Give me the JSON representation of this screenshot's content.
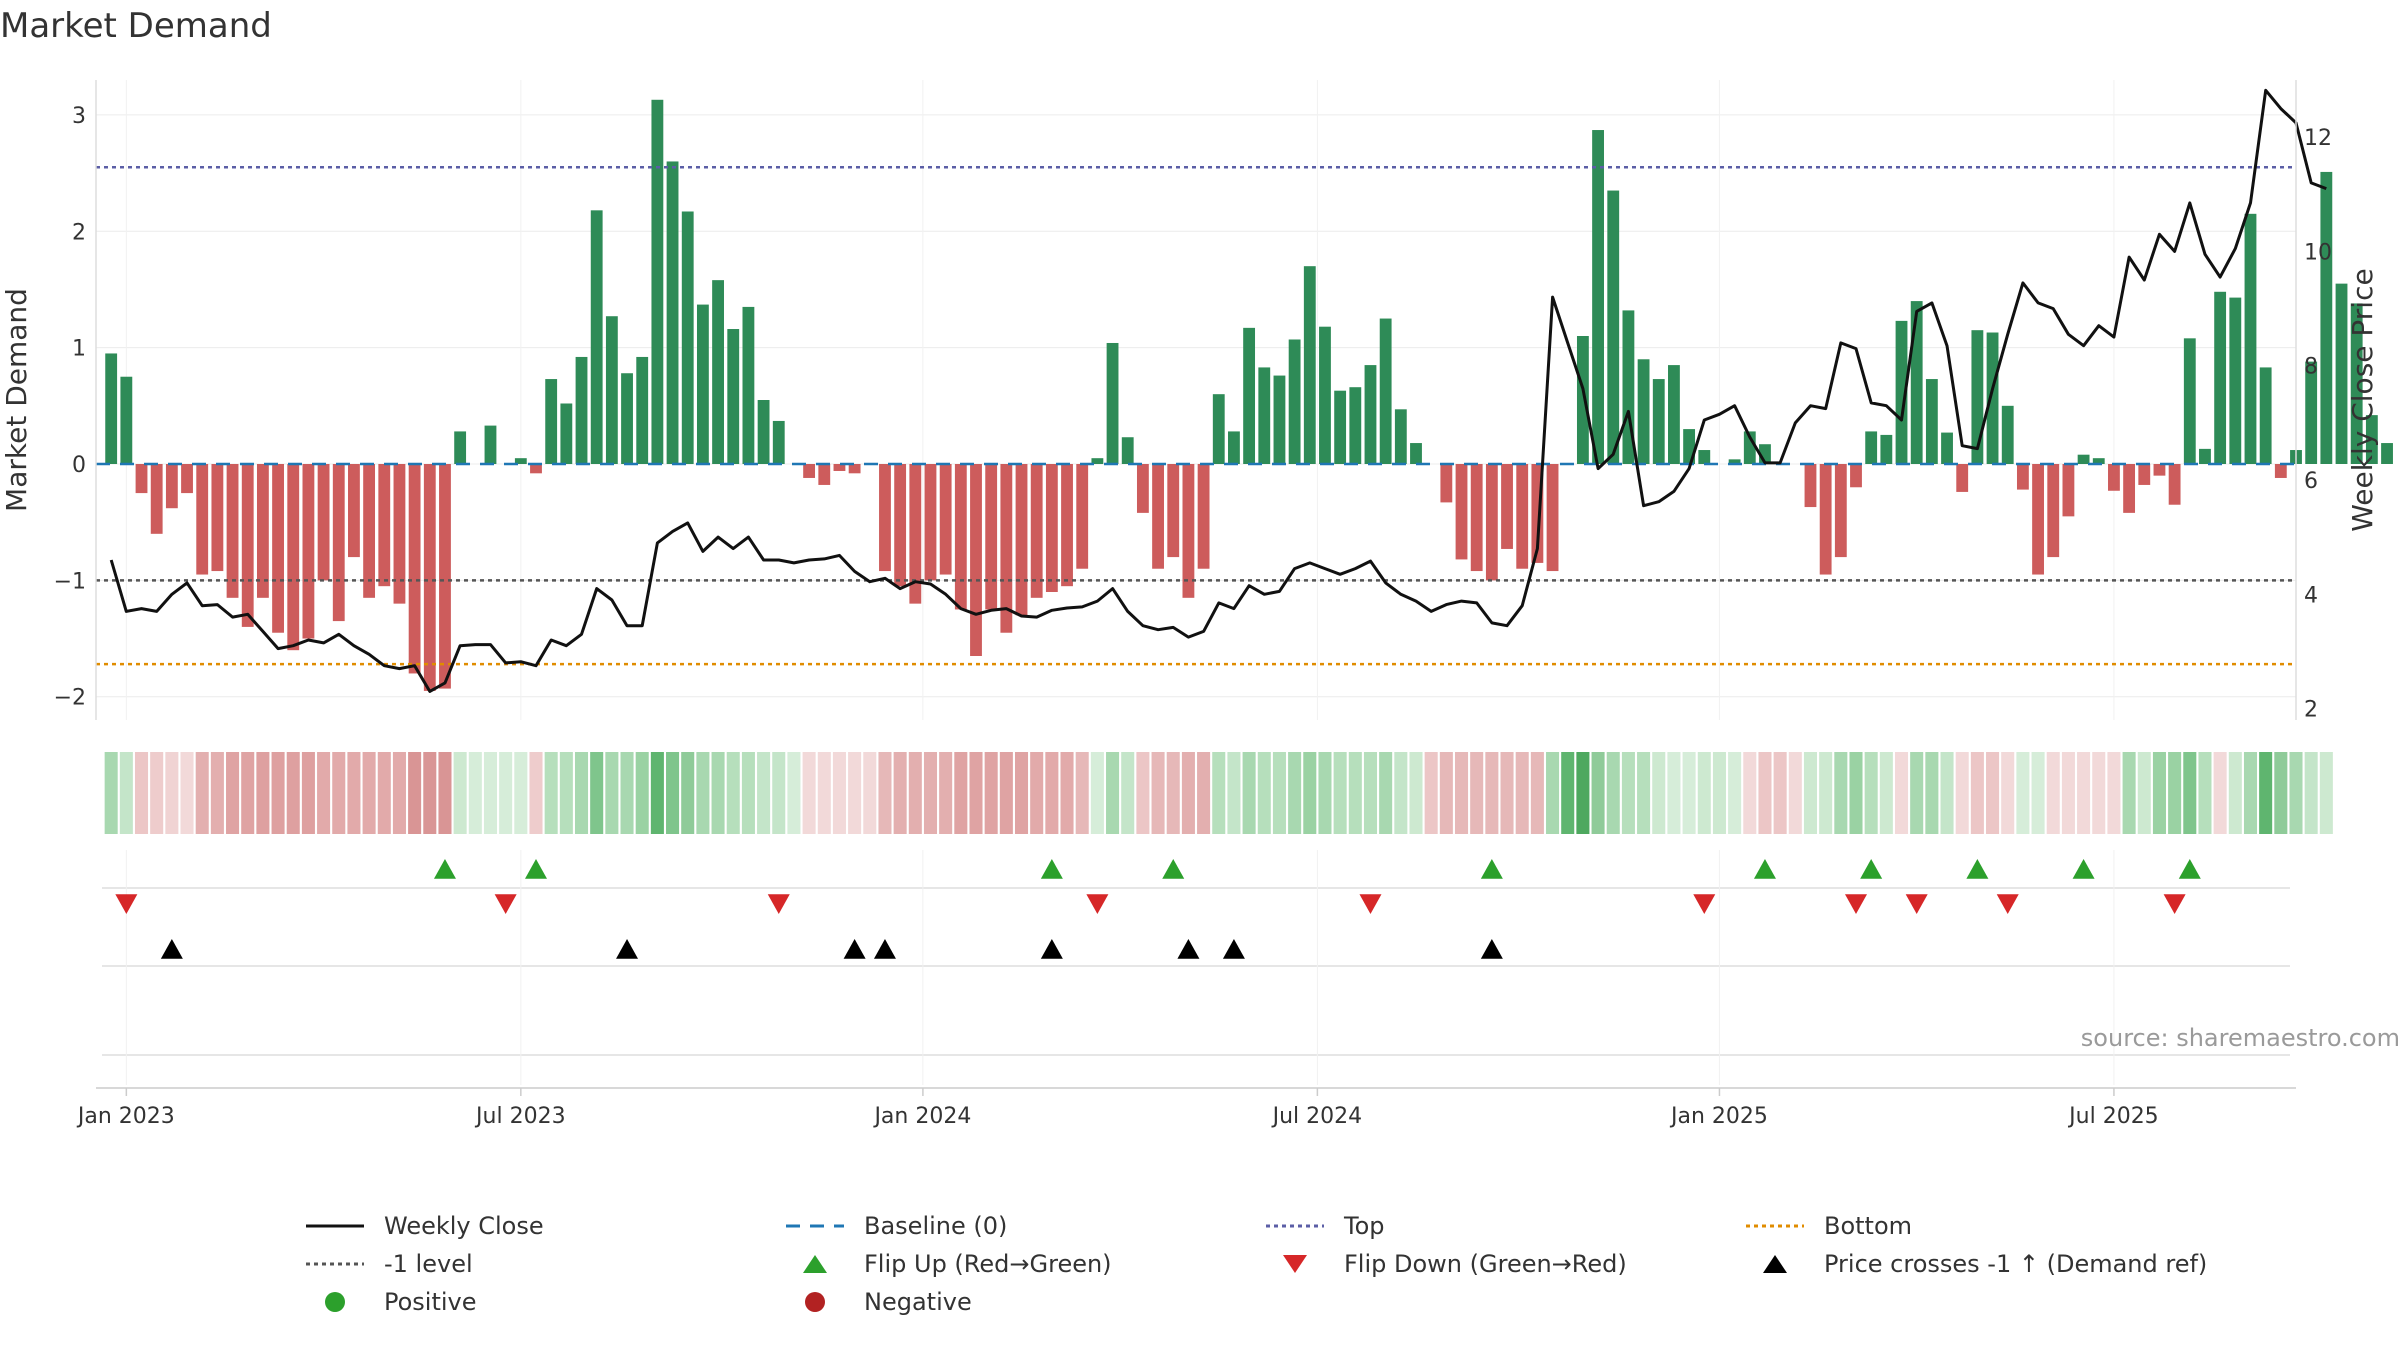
{
  "chart_data": {
    "type": "bar",
    "title": "Market Demand",
    "ylabel": "Market Demand",
    "ylabel_right": "Weekly Close Price",
    "ylim": [
      -2.2,
      3.3
    ],
    "ylim_right": [
      1.8,
      13.0
    ],
    "yticks": [
      3,
      2,
      1,
      0,
      -1,
      -2
    ],
    "yticks_labels": [
      "3",
      "2",
      "1",
      "0",
      "−1",
      "−2"
    ],
    "yticks_right": [
      12,
      10,
      8,
      6,
      4,
      2
    ],
    "x_range": [
      -1,
      144
    ],
    "xticks": [
      {
        "week": 1,
        "label": "Jan 2023"
      },
      {
        "week": 27,
        "label": "Jul 2023"
      },
      {
        "week": 53.5,
        "label": "Jan 2024"
      },
      {
        "week": 79.5,
        "label": "Jul 2024"
      },
      {
        "week": 106,
        "label": "Jan 2025"
      },
      {
        "week": 132,
        "label": "Jul 2025"
      }
    ],
    "reference_lines": {
      "top": 2.55,
      "minus_one": -1.0,
      "bottom": -1.72,
      "baseline": 0
    },
    "demand": [
      0.95,
      0.75,
      -0.25,
      -0.6,
      -0.38,
      -0.25,
      -0.95,
      -0.92,
      -1.15,
      -1.4,
      -1.15,
      -1.45,
      -1.6,
      -1.5,
      -1.0,
      -1.35,
      -0.8,
      -1.15,
      -1.05,
      -1.2,
      -1.8,
      -1.95,
      -1.93,
      0.28,
      0.0,
      0.33,
      0.0,
      0.05,
      -0.08,
      0.73,
      0.52,
      0.92,
      2.18,
      1.27,
      0.78,
      0.92,
      3.13,
      2.6,
      2.17,
      1.37,
      1.58,
      1.16,
      1.35,
      0.55,
      0.37,
      0.0,
      -0.12,
      -0.18,
      -0.06,
      -0.08,
      0.0,
      -0.92,
      -1.05,
      -1.2,
      -1.0,
      -0.95,
      -1.25,
      -1.65,
      -1.25,
      -1.45,
      -1.3,
      -1.15,
      -1.1,
      -1.05,
      -0.9,
      0.05,
      1.04,
      0.23,
      -0.42,
      -0.9,
      -0.8,
      -1.15,
      -0.9,
      0.6,
      0.28,
      1.17,
      0.83,
      0.76,
      1.07,
      1.7,
      1.18,
      0.63,
      0.66,
      0.85,
      1.25,
      0.47,
      0.18,
      0.0,
      -0.33,
      -0.82,
      -0.92,
      -1.0,
      -0.73,
      -0.9,
      -0.85,
      -0.92,
      0.0,
      1.1,
      2.87,
      2.35,
      1.32,
      0.9,
      0.73,
      0.85,
      0.3,
      0.12,
      0.0,
      0.04,
      0.28,
      0.17,
      0.0,
      0.0,
      -0.37,
      -0.95,
      -0.8,
      -0.2,
      0.28,
      0.25,
      1.23,
      1.4,
      0.73,
      0.27,
      -0.24,
      1.15,
      1.13,
      0.5,
      -0.22,
      -0.95,
      -0.8,
      -0.45,
      0.08,
      0.05,
      -0.23,
      -0.42,
      -0.18,
      -0.1,
      -0.35,
      1.08,
      0.13,
      1.48,
      1.43,
      2.15,
      0.83,
      -0.12,
      0.12,
      0.88,
      2.51,
      1.55,
      1.38,
      0.42,
      0.18
    ],
    "close": [
      4.6,
      3.7,
      3.75,
      3.7,
      4.0,
      4.2,
      3.8,
      3.82,
      3.6,
      3.65,
      3.35,
      3.05,
      3.1,
      3.2,
      3.15,
      3.3,
      3.1,
      2.95,
      2.75,
      2.7,
      2.75,
      2.3,
      2.45,
      3.1,
      3.12,
      3.12,
      2.8,
      2.82,
      2.75,
      3.2,
      3.1,
      3.3,
      4.1,
      3.9,
      3.45,
      3.45,
      4.9,
      5.1,
      5.25,
      4.75,
      5.0,
      4.8,
      5.0,
      4.6,
      4.6,
      4.55,
      4.6,
      4.62,
      4.68,
      4.4,
      4.22,
      4.28,
      4.1,
      4.22,
      4.18,
      4.0,
      3.75,
      3.65,
      3.72,
      3.75,
      3.62,
      3.6,
      3.72,
      3.76,
      3.78,
      3.88,
      4.1,
      3.7,
      3.45,
      3.38,
      3.42,
      3.25,
      3.35,
      3.85,
      3.75,
      4.15,
      4.0,
      4.05,
      4.45,
      4.55,
      4.45,
      4.35,
      4.45,
      4.58,
      4.2,
      4.0,
      3.88,
      3.7,
      3.82,
      3.88,
      3.85,
      3.5,
      3.45,
      3.8,
      4.8,
      9.2,
      8.4,
      7.6,
      6.2,
      6.45,
      7.2,
      5.55,
      5.62,
      5.8,
      6.2,
      7.05,
      7.15,
      7.3,
      6.75,
      6.3,
      6.3,
      7.0,
      7.3,
      7.25,
      8.4,
      8.3,
      7.35,
      7.3,
      7.05,
      8.95,
      9.1,
      8.35,
      6.6,
      6.55,
      7.6,
      8.55,
      9.45,
      9.1,
      9.0,
      8.55,
      8.35,
      8.7,
      8.5,
      9.9,
      9.5,
      10.3,
      10.0,
      10.85,
      9.95,
      9.55,
      10.05,
      10.85,
      12.82,
      12.5,
      12.25,
      11.2,
      11.1
    ],
    "heat_row_colors": [
      "#a8d8b0",
      "#c4e5c9",
      "#ecc6c6",
      "#eecccc",
      "#f0d3d3",
      "#f2d9d9",
      "#e3afaf",
      "#e3afaf",
      "#dfa3a3",
      "#dfa3a3",
      "#dea0a0",
      "#dea0a0",
      "#dea0a0",
      "#dea0a0",
      "#e2aaaa",
      "#e2aaaa",
      "#e2aaaa",
      "#e2aaaa",
      "#e2aaaa",
      "#e2aaaa",
      "#d99595",
      "#d99595",
      "#d99595",
      "#cde9d0",
      "#d6edd9",
      "#d6edd9",
      "#d6edd9",
      "#d6edd9",
      "#eecccc",
      "#b6dfbc",
      "#b6dfbc",
      "#a8d8b0",
      "#7fc58c",
      "#a8d8b0",
      "#a8d8b0",
      "#9ad2a3",
      "#5fb56f",
      "#7fc58c",
      "#8fcb99",
      "#a8d8b0",
      "#a8d8b0",
      "#b6dfbc",
      "#b6dfbc",
      "#c4e5c9",
      "#c4e5c9",
      "#d6edd9",
      "#f2d9d9",
      "#f2d9d9",
      "#f2d9d9",
      "#f2d9d9",
      "#f2d9d9",
      "#e6b8b8",
      "#e3afaf",
      "#e3afaf",
      "#e3afaf",
      "#e3afaf",
      "#dfa3a3",
      "#dfa3a3",
      "#dfa3a3",
      "#dfa3a3",
      "#dfa3a3",
      "#e2aaaa",
      "#e2aaaa",
      "#e2aaaa",
      "#e6b8b8",
      "#d6edd9",
      "#a8d8b0",
      "#c4e5c9",
      "#ecc6c6",
      "#e6b8b8",
      "#e6b8b8",
      "#e3afaf",
      "#e3afaf",
      "#b6dfbc",
      "#c4e5c9",
      "#a8d8b0",
      "#b6dfbc",
      "#b6dfbc",
      "#a8d8b0",
      "#9ad2a3",
      "#a8d8b0",
      "#b6dfbc",
      "#b6dfbc",
      "#b6dfbc",
      "#a8d8b0",
      "#c4e5c9",
      "#cde9d0",
      "#ecc6c6",
      "#e6b8b8",
      "#e6b8b8",
      "#e6b8b8",
      "#e6b8b8",
      "#e6b8b8",
      "#e6b8b8",
      "#e6b8b8",
      "#a8d8b0",
      "#5fb56f",
      "#4ea85f",
      "#8fcb99",
      "#a8d8b0",
      "#b6dfbc",
      "#b6dfbc",
      "#cde9d0",
      "#d6edd9",
      "#d6edd9",
      "#cde9d0",
      "#cde9d0",
      "#d6edd9",
      "#f2d9d9",
      "#ecc6c6",
      "#ecc6c6",
      "#f2d9d9",
      "#cde9d0",
      "#cde9d0",
      "#a8d8b0",
      "#9ad2a3",
      "#b6dfbc",
      "#cde9d0",
      "#f2d9d9",
      "#a8d8b0",
      "#a8d8b0",
      "#c4e5c9",
      "#f2d9d9",
      "#ecc6c6",
      "#ecc6c6",
      "#f2d9d9",
      "#d6edd9",
      "#d6edd9",
      "#f2d9d9",
      "#f2d9d9",
      "#f2d9d9",
      "#f2d9d9",
      "#f2d9d9",
      "#a8d8b0",
      "#cde9d0",
      "#9ad2a3",
      "#9ad2a3",
      "#7fc58c",
      "#b6dfbc",
      "#f2d9d9",
      "#cde9d0",
      "#a8d8b0",
      "#5fb56f",
      "#8fcb99",
      "#a8d8b0",
      "#c4e5c9",
      "#cde9d0"
    ],
    "flip_up_weeks": [
      22,
      28,
      62,
      70,
      91,
      109,
      116,
      123,
      130,
      137
    ],
    "flip_down_weeks": [
      1,
      26,
      44,
      65,
      83,
      105,
      115,
      119,
      125,
      136
    ],
    "price_cross_weeks": [
      4,
      34,
      49,
      51,
      62,
      71,
      74,
      91
    ],
    "legend": [
      {
        "key": "weekly_close",
        "label": "Weekly Close"
      },
      {
        "key": "baseline",
        "label": "Baseline (0)"
      },
      {
        "key": "top",
        "label": "Top"
      },
      {
        "key": "bottom",
        "label": "Bottom"
      },
      {
        "key": "minus_one",
        "label": "-1 level"
      },
      {
        "key": "flip_up",
        "label": "Flip Up (Red→Green)"
      },
      {
        "key": "flip_down",
        "label": "Flip Down (Green→Red)"
      },
      {
        "key": "price_cross",
        "label": "Price crosses -1 ↑ (Demand ref)"
      },
      {
        "key": "positive",
        "label": "Positive"
      },
      {
        "key": "negative",
        "label": "Negative"
      }
    ],
    "source": "source: sharemaestro.com"
  },
  "colors": {
    "positive_bar": "#2e8b57",
    "negative_bar": "#cd5c5c",
    "close_line": "#111111",
    "baseline": "#1f77b4",
    "top": "#5b5ea6",
    "minus_one": "#555555",
    "bottom": "#e08c00",
    "flip_up": "#2ca02c",
    "flip_down": "#d62728",
    "price_cross": "#000000",
    "positive_dot": "#2ca02c",
    "negative_dot": "#b22222"
  }
}
